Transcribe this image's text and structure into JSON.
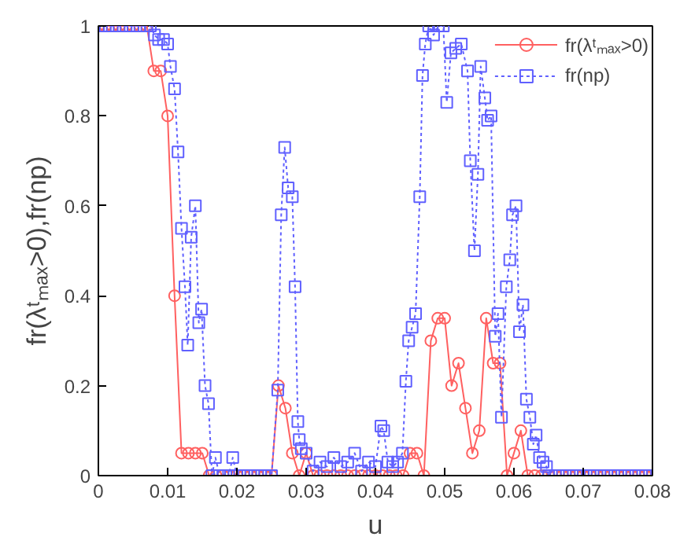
{
  "chart_data": {
    "type": "line",
    "xlabel": "u",
    "ylabel": "fr(λᵗₘₐₓ>0),fr(np)",
    "xlim": [
      0,
      0.08
    ],
    "ylim": [
      0,
      1
    ],
    "xticks": [
      0,
      0.01,
      0.02,
      0.03,
      0.04,
      0.05,
      0.06,
      0.07,
      0.08
    ],
    "yticks": [
      0,
      0.2,
      0.4,
      0.6,
      0.8,
      1
    ],
    "grid": false,
    "legend": "top right",
    "series": [
      {
        "name": "fr(λᵗₘₐₓ>0)",
        "color": "#ff6060",
        "marker": "circle",
        "line_style": "solid",
        "x": [
          0,
          0.001,
          0.002,
          0.003,
          0.004,
          0.005,
          0.006,
          0.007,
          0.008,
          0.009,
          0.01,
          0.011,
          0.012,
          0.013,
          0.014,
          0.015,
          0.016,
          0.017,
          0.018,
          0.019,
          0.02,
          0.021,
          0.022,
          0.023,
          0.024,
          0.025,
          0.026,
          0.027,
          0.028,
          0.029,
          0.03,
          0.031,
          0.032,
          0.033,
          0.034,
          0.035,
          0.036,
          0.037,
          0.038,
          0.039,
          0.04,
          0.041,
          0.042,
          0.043,
          0.044,
          0.045,
          0.046,
          0.047,
          0.048,
          0.049,
          0.05,
          0.051,
          0.052,
          0.053,
          0.054,
          0.055,
          0.056,
          0.057,
          0.058,
          0.059,
          0.06,
          0.061,
          0.062,
          0.063,
          0.064,
          0.065,
          0.066,
          0.067,
          0.068,
          0.069,
          0.07,
          0.071,
          0.072,
          0.073,
          0.074,
          0.075,
          0.076,
          0.077,
          0.078,
          0.079,
          0.08
        ],
        "values": [
          1,
          1,
          1,
          1,
          1,
          1,
          1,
          1,
          0.9,
          0.9,
          0.8,
          0.4,
          0.05,
          0.05,
          0.05,
          0.05,
          0,
          0,
          0,
          0,
          0,
          0,
          0,
          0,
          0,
          0,
          0.2,
          0.15,
          0.05,
          0,
          0.05,
          0,
          0,
          0,
          0,
          0,
          0,
          0,
          0,
          0,
          0,
          0,
          0,
          0,
          0,
          0.05,
          0.05,
          0,
          0.3,
          0.35,
          0.35,
          0.2,
          0.25,
          0.15,
          0.05,
          0.1,
          0.35,
          0.25,
          0.25,
          0,
          0.05,
          0.1,
          0,
          0,
          0,
          0,
          0,
          0,
          0,
          0,
          0,
          0,
          0,
          0,
          0,
          0,
          0,
          0,
          0,
          0,
          0
        ]
      },
      {
        "name": "fr(np)",
        "color": "#6060ff",
        "marker": "square",
        "line_style": "dotted",
        "x": [
          0,
          0.001,
          0.002,
          0.003,
          0.004,
          0.005,
          0.006,
          0.007,
          0.0075,
          0.0081,
          0.0087,
          0.0094,
          0.01,
          0.0104,
          0.011,
          0.0115,
          0.012,
          0.0125,
          0.0129,
          0.0134,
          0.014,
          0.0145,
          0.0149,
          0.0154,
          0.0159,
          0.0164,
          0.0169,
          0.0175,
          0.018,
          0.0188,
          0.0194,
          0.02,
          0.021,
          0.022,
          0.023,
          0.024,
          0.025,
          0.0259,
          0.0264,
          0.0269,
          0.0274,
          0.028,
          0.0284,
          0.0288,
          0.029,
          0.0293,
          0.03,
          0.031,
          0.032,
          0.033,
          0.034,
          0.035,
          0.036,
          0.037,
          0.038,
          0.039,
          0.04,
          0.0408,
          0.0412,
          0.0418,
          0.0425,
          0.0432,
          0.0439,
          0.0444,
          0.0448,
          0.0453,
          0.0458,
          0.0464,
          0.0468,
          0.0472,
          0.0477,
          0.0484,
          0.0491,
          0.0498,
          0.0503,
          0.0509,
          0.0516,
          0.0524,
          0.0533,
          0.0537,
          0.0543,
          0.0548,
          0.0552,
          0.0558,
          0.0562,
          0.0567,
          0.0573,
          0.0577,
          0.0582,
          0.0589,
          0.0594,
          0.0598,
          0.0603,
          0.0608,
          0.0613,
          0.0618,
          0.0623,
          0.0628,
          0.0632,
          0.0637,
          0.0642,
          0.0647,
          0.065,
          0.066,
          0.067,
          0.068,
          0.069,
          0.07,
          0.071,
          0.072,
          0.073,
          0.074,
          0.075,
          0.076,
          0.077,
          0.078,
          0.079,
          0.08
        ],
        "values": [
          1,
          1,
          1,
          1,
          1,
          1,
          1,
          1,
          1,
          0.98,
          0.97,
          0.97,
          0.96,
          0.91,
          0.86,
          0.72,
          0.55,
          0.42,
          0.29,
          0.53,
          0.6,
          0.34,
          0.37,
          0.2,
          0.16,
          0,
          0.04,
          0,
          0,
          0,
          0.04,
          0,
          0,
          0,
          0,
          0,
          0,
          0.19,
          0.58,
          0.73,
          0.64,
          0.62,
          0.42,
          0.12,
          0.08,
          0.06,
          0.05,
          0.01,
          0.03,
          0.02,
          0.04,
          0.02,
          0.03,
          0.05,
          0.01,
          0.03,
          0.02,
          0.11,
          0.1,
          0.03,
          0.02,
          0.03,
          0.05,
          0.21,
          0.3,
          0.33,
          0.36,
          0.62,
          0.89,
          0.96,
          1,
          0.98,
          1,
          1,
          0.83,
          0.94,
          0.95,
          0.96,
          0.9,
          0.7,
          0.5,
          0.67,
          0.91,
          0.84,
          0.79,
          0.8,
          0.31,
          0.36,
          0.13,
          0.42,
          0.48,
          0.58,
          0.6,
          0.32,
          0.38,
          0.17,
          0.13,
          0.07,
          0.09,
          0.04,
          0.03,
          0.02,
          0,
          0,
          0,
          0,
          0,
          0,
          0,
          0,
          0,
          0,
          0,
          0,
          0,
          0,
          0,
          0
        ]
      }
    ]
  }
}
